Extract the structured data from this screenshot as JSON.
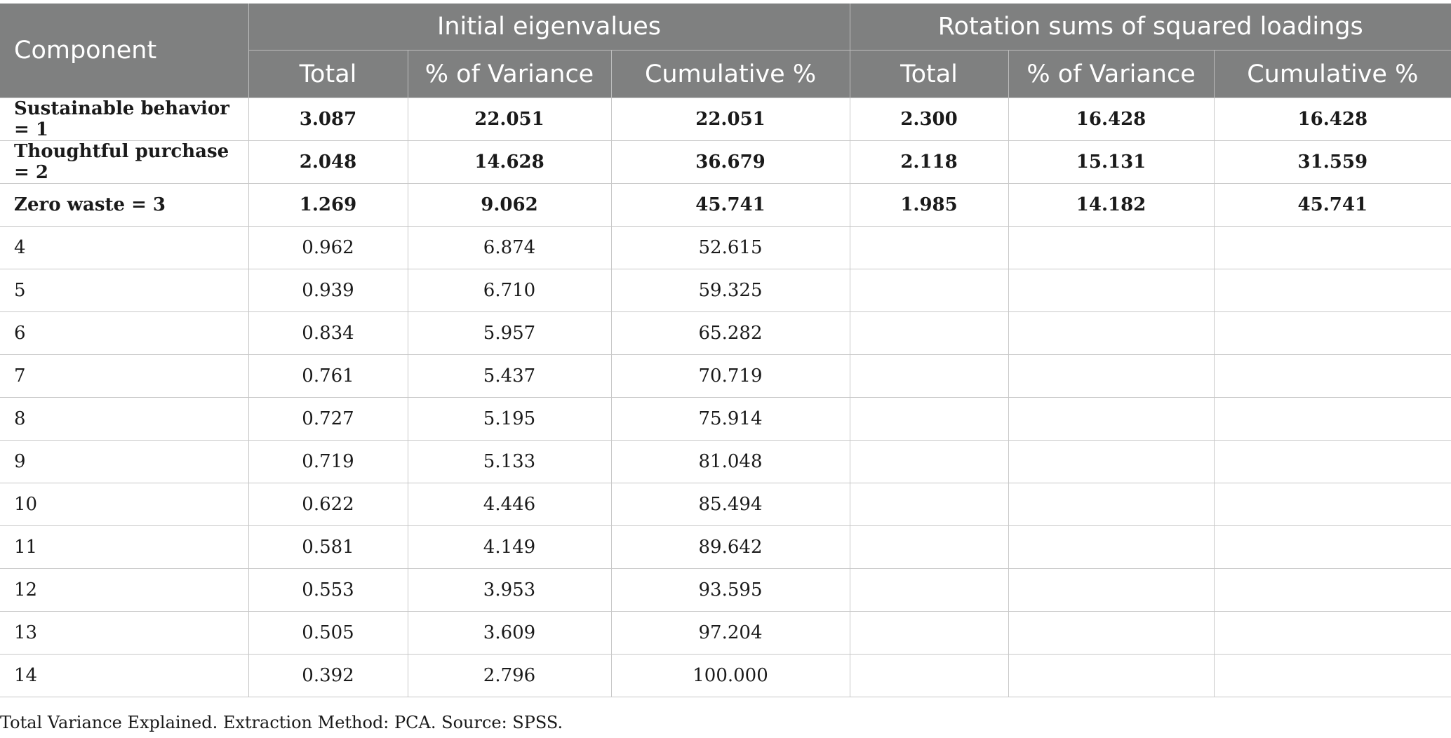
{
  "table": {
    "headers": {
      "component": "Component",
      "group_initial": "Initial eigenvalues",
      "group_rotation": "Rotation sums of squared loadings",
      "sub": [
        "Total",
        "% of Variance",
        "Cumulative %",
        "Total",
        "% of Variance",
        "Cumulative %"
      ]
    },
    "rows": [
      {
        "component": "Sustainable behavior = 1",
        "cells": [
          "3.087",
          "22.051",
          "22.051",
          "2.300",
          "16.428",
          "16.428"
        ],
        "bold": true
      },
      {
        "component": "Thoughtful purchase = 2",
        "cells": [
          "2.048",
          "14.628",
          "36.679",
          "2.118",
          "15.131",
          "31.559"
        ],
        "bold": true
      },
      {
        "component": "Zero waste = 3",
        "cells": [
          "1.269",
          "9.062",
          "45.741",
          "1.985",
          "14.182",
          "45.741"
        ],
        "bold": true
      },
      {
        "component": "4",
        "cells": [
          "0.962",
          "6.874",
          "52.615",
          "",
          "",
          ""
        ],
        "bold": false
      },
      {
        "component": "5",
        "cells": [
          "0.939",
          "6.710",
          "59.325",
          "",
          "",
          ""
        ],
        "bold": false
      },
      {
        "component": "6",
        "cells": [
          "0.834",
          "5.957",
          "65.282",
          "",
          "",
          ""
        ],
        "bold": false
      },
      {
        "component": "7",
        "cells": [
          "0.761",
          "5.437",
          "70.719",
          "",
          "",
          ""
        ],
        "bold": false
      },
      {
        "component": "8",
        "cells": [
          "0.727",
          "5.195",
          "75.914",
          "",
          "",
          ""
        ],
        "bold": false
      },
      {
        "component": "9",
        "cells": [
          "0.719",
          "5.133",
          "81.048",
          "",
          "",
          ""
        ],
        "bold": false
      },
      {
        "component": "10",
        "cells": [
          "0.622",
          "4.446",
          "85.494",
          "",
          "",
          ""
        ],
        "bold": false
      },
      {
        "component": "11",
        "cells": [
          "0.581",
          "4.149",
          "89.642",
          "",
          "",
          ""
        ],
        "bold": false
      },
      {
        "component": "12",
        "cells": [
          "0.553",
          "3.953",
          "93.595",
          "",
          "",
          ""
        ],
        "bold": false
      },
      {
        "component": "13",
        "cells": [
          "0.505",
          "3.609",
          "97.204",
          "",
          "",
          ""
        ],
        "bold": false
      },
      {
        "component": "14",
        "cells": [
          "0.392",
          "2.796",
          "100.000",
          "",
          "",
          ""
        ],
        "bold": false
      }
    ]
  },
  "caption": "Total Variance Explained. Extraction Method: PCA. Source: SPSS.",
  "colors": {
    "header_bg": "#7f8080",
    "header_text": "#ffffff",
    "grid": "#c8c8c8"
  }
}
